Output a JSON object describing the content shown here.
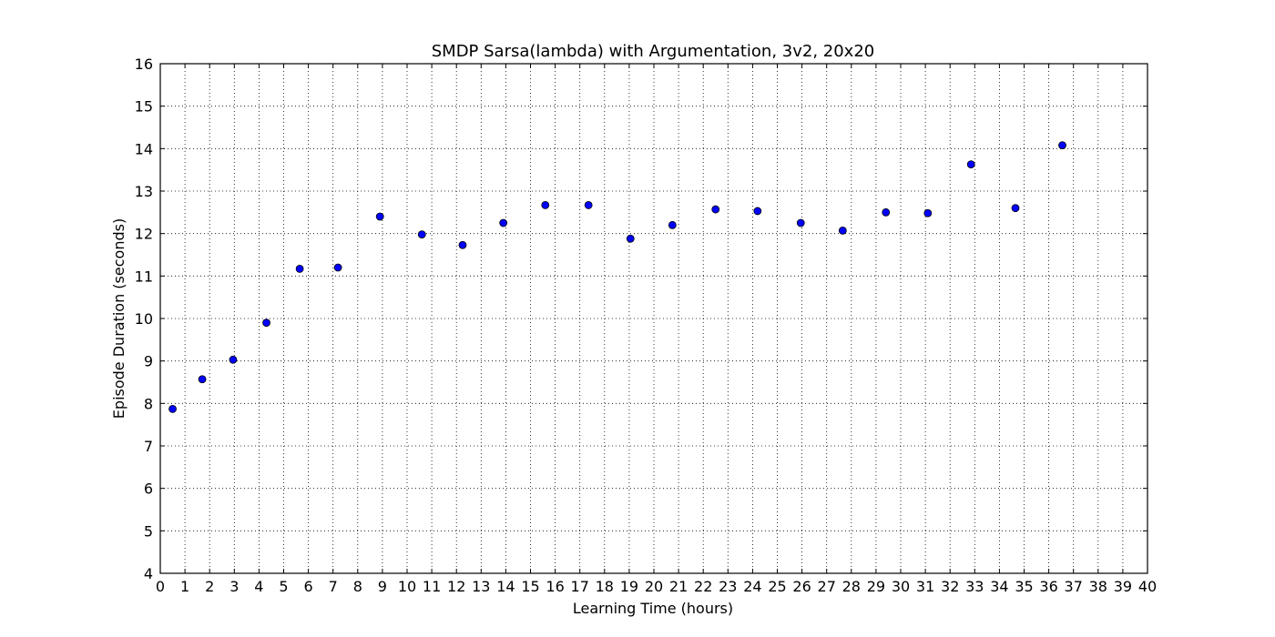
{
  "chart_data": {
    "type": "scatter",
    "title": "SMDP Sarsa(lambda) with Argumentation, 3v2, 20x20",
    "xlabel": "Learning Time (hours)",
    "ylabel": "Episode Duration (seconds)",
    "xlim": [
      0,
      40
    ],
    "ylim": [
      4,
      16
    ],
    "xticks": [
      0,
      1,
      2,
      3,
      4,
      5,
      6,
      7,
      8,
      9,
      10,
      11,
      12,
      13,
      14,
      15,
      16,
      17,
      18,
      19,
      20,
      21,
      22,
      23,
      24,
      25,
      26,
      27,
      28,
      29,
      30,
      31,
      32,
      33,
      34,
      35,
      36,
      37,
      38,
      39,
      40
    ],
    "yticks": [
      4,
      5,
      6,
      7,
      8,
      9,
      10,
      11,
      12,
      13,
      14,
      15,
      16
    ],
    "grid": true,
    "marker_color": "#0000ff",
    "series": [
      {
        "x": [
          0.5,
          1.7,
          2.95,
          4.3,
          5.65,
          7.2,
          8.9,
          10.6,
          12.25,
          13.9,
          15.6,
          17.35,
          19.05,
          20.75,
          22.5,
          24.2,
          25.95,
          27.65,
          29.4,
          31.1,
          32.85,
          34.65,
          36.55
        ],
        "y": [
          7.87,
          8.57,
          9.03,
          9.9,
          11.17,
          11.2,
          12.4,
          11.98,
          11.73,
          12.25,
          12.67,
          12.67,
          11.88,
          12.2,
          12.57,
          12.53,
          12.25,
          12.07,
          12.5,
          12.48,
          13.63,
          12.6,
          14.08
        ]
      }
    ]
  }
}
